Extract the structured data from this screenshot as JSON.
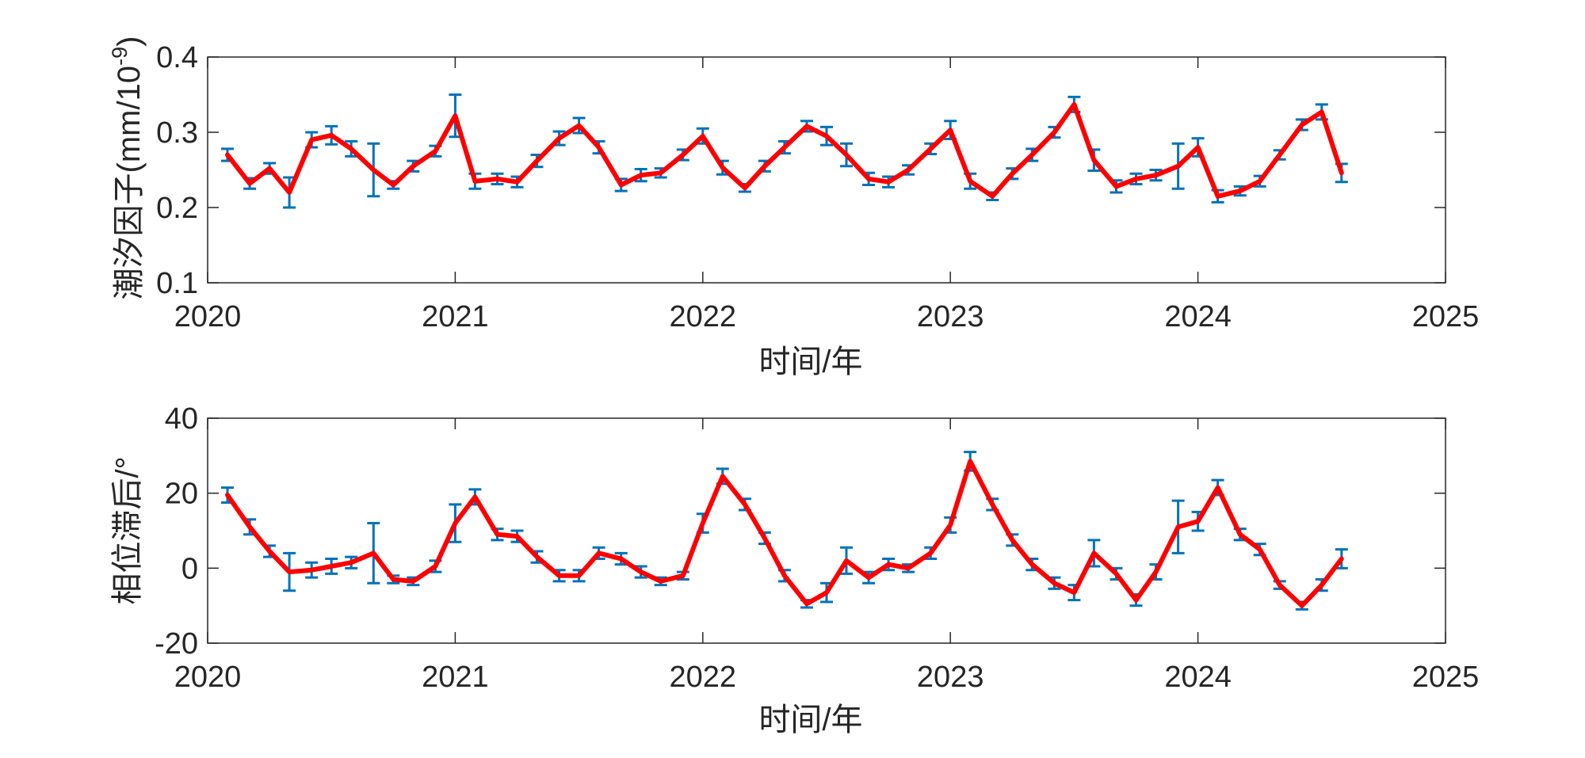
{
  "chart_data": [
    {
      "type": "line",
      "xlabel": "时间/年",
      "ylabel": "潮汐因子(mm/10",
      "ylabel_sup": "-9",
      "ylabel_tail": ")",
      "xlim": [
        2020,
        2025
      ],
      "ylim": [
        0.1,
        0.4
      ],
      "xticks": [
        "2020",
        "2021",
        "2022",
        "2023",
        "2024",
        "2025"
      ],
      "yticks": [
        "0.1",
        "0.2",
        "0.3",
        "0.4"
      ],
      "ytick_values": [
        0.1,
        0.2,
        0.3,
        0.4
      ],
      "grid": false,
      "line_color": "#ff0000",
      "errorbar_color": "#0072bd",
      "series": [
        {
          "x": [
            2020.08,
            2020.17,
            2020.25,
            2020.33,
            2020.42,
            2020.5,
            2020.58,
            2020.67,
            2020.75,
            2020.83,
            2020.92,
            2021.0,
            2021.08,
            2021.17,
            2021.25,
            2021.33,
            2021.42,
            2021.5,
            2021.58,
            2021.67,
            2021.75,
            2021.83,
            2021.92,
            2022.0,
            2022.08,
            2022.17,
            2022.25,
            2022.33,
            2022.42,
            2022.5,
            2022.58,
            2022.67,
            2022.75,
            2022.83,
            2022.92,
            2023.0,
            2023.08,
            2023.17,
            2023.25,
            2023.33,
            2023.42,
            2023.5,
            2023.58,
            2023.67,
            2023.75,
            2023.83,
            2023.92,
            2024.0,
            2024.08,
            2024.17,
            2024.25,
            2024.33,
            2024.42,
            2024.5,
            2024.58
          ],
          "y": [
            0.27,
            0.232,
            0.252,
            0.22,
            0.29,
            0.296,
            0.278,
            0.25,
            0.23,
            0.255,
            0.275,
            0.322,
            0.235,
            0.238,
            0.234,
            0.262,
            0.292,
            0.309,
            0.28,
            0.23,
            0.243,
            0.246,
            0.27,
            0.295,
            0.253,
            0.226,
            0.255,
            0.28,
            0.308,
            0.295,
            0.27,
            0.238,
            0.234,
            0.25,
            0.278,
            0.303,
            0.235,
            0.215,
            0.245,
            0.27,
            0.3,
            0.337,
            0.263,
            0.228,
            0.238,
            0.243,
            0.255,
            0.28,
            0.215,
            0.222,
            0.235,
            0.27,
            0.31,
            0.327,
            0.246
          ],
          "err": [
            0.008,
            0.007,
            0.007,
            0.02,
            0.01,
            0.012,
            0.01,
            0.035,
            0.005,
            0.007,
            0.007,
            0.028,
            0.01,
            0.007,
            0.007,
            0.008,
            0.009,
            0.01,
            0.008,
            0.008,
            0.008,
            0.006,
            0.007,
            0.01,
            0.009,
            0.005,
            0.007,
            0.008,
            0.007,
            0.012,
            0.015,
            0.008,
            0.007,
            0.006,
            0.007,
            0.012,
            0.01,
            0.005,
            0.007,
            0.008,
            0.007,
            0.01,
            0.014,
            0.008,
            0.007,
            0.007,
            0.03,
            0.012,
            0.008,
            0.006,
            0.007,
            0.006,
            0.007,
            0.01,
            0.012
          ]
        }
      ]
    },
    {
      "type": "line",
      "xlabel": "时间/年",
      "ylabel": "相位滞后/°",
      "xlim": [
        2020,
        2025
      ],
      "ylim": [
        -20,
        40
      ],
      "xticks": [
        "2020",
        "2021",
        "2022",
        "2023",
        "2024",
        "2025"
      ],
      "yticks": [
        "-20",
        "0",
        "20",
        "40"
      ],
      "ytick_values": [
        -20,
        0,
        20,
        40
      ],
      "grid": false,
      "line_color": "#ff0000",
      "errorbar_color": "#0072bd",
      "series": [
        {
          "x": [
            2020.08,
            2020.17,
            2020.25,
            2020.33,
            2020.42,
            2020.5,
            2020.58,
            2020.67,
            2020.75,
            2020.83,
            2020.92,
            2021.0,
            2021.08,
            2021.17,
            2021.25,
            2021.33,
            2021.42,
            2021.5,
            2021.58,
            2021.67,
            2021.75,
            2021.83,
            2021.92,
            2022.0,
            2022.08,
            2022.17,
            2022.25,
            2022.33,
            2022.42,
            2022.5,
            2022.58,
            2022.67,
            2022.75,
            2022.83,
            2022.92,
            2023.0,
            2023.08,
            2023.17,
            2023.25,
            2023.33,
            2023.42,
            2023.5,
            2023.58,
            2023.67,
            2023.75,
            2023.83,
            2023.92,
            2024.0,
            2024.08,
            2024.17,
            2024.25,
            2024.33,
            2024.42,
            2024.5,
            2024.58
          ],
          "y": [
            19.5,
            11.0,
            4.5,
            -1.0,
            -0.5,
            0.5,
            1.5,
            4.0,
            -3.0,
            -3.5,
            0.5,
            12.0,
            19.0,
            9.0,
            8.5,
            3.0,
            -2.0,
            -2.0,
            4.0,
            2.5,
            -1.0,
            -3.5,
            -2.0,
            12.0,
            24.5,
            17.0,
            8.0,
            -2.0,
            -9.5,
            -6.5,
            2.0,
            -2.5,
            1.0,
            0.0,
            4.0,
            11.5,
            28.5,
            17.0,
            7.5,
            1.0,
            -4.0,
            -6.5,
            4.0,
            -1.5,
            -8.5,
            -1.0,
            11.0,
            12.5,
            21.5,
            9.0,
            5.0,
            -4.5,
            -10.0,
            -4.5,
            2.5
          ],
          "err": [
            2.0,
            2.0,
            1.5,
            5.0,
            2.0,
            2.0,
            1.5,
            8.0,
            1.0,
            1.0,
            1.5,
            5.0,
            2.0,
            1.5,
            1.5,
            1.5,
            1.5,
            1.5,
            1.5,
            1.5,
            1.5,
            1.0,
            1.0,
            2.5,
            2.0,
            1.5,
            1.5,
            1.5,
            1.0,
            2.5,
            3.5,
            1.5,
            1.5,
            1.0,
            1.5,
            2.0,
            2.5,
            1.5,
            1.5,
            1.5,
            1.5,
            2.0,
            3.5,
            1.5,
            1.5,
            2.0,
            7.0,
            2.5,
            2.0,
            1.5,
            1.5,
            1.0,
            1.0,
            1.5,
            2.5
          ]
        }
      ]
    }
  ]
}
